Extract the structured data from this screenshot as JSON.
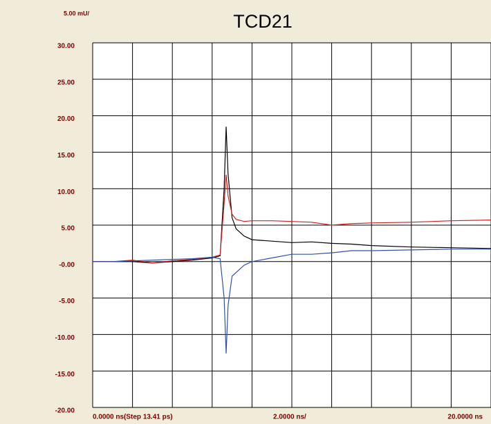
{
  "chart_data": {
    "type": "line",
    "title": "TCD21",
    "y_division_label": "5.00 mU/",
    "x_start_label": "0.0000 ns(Step 13.41 ps)",
    "x_division_label": "2.0000 ns/",
    "x_end_label": "20.0000 ns",
    "x": [
      0,
      1.0,
      2.0,
      3.0,
      4.0,
      5.0,
      6.0,
      6.4,
      6.6,
      6.7,
      6.8,
      7.0,
      7.2,
      7.6,
      8.0,
      9.0,
      10.0,
      11.0,
      12.0,
      13.0,
      14.0,
      16.0,
      18.0,
      20.0
    ],
    "series": [
      {
        "name": "black",
        "color": "#000000",
        "values": [
          0,
          0,
          0,
          -0.2,
          0,
          0.2,
          0.5,
          0.8,
          10,
          18.5,
          12,
          6,
          4.5,
          3.5,
          3,
          2.8,
          2.6,
          2.7,
          2.5,
          2.4,
          2.2,
          2,
          1.9,
          1.8
        ]
      },
      {
        "name": "red",
        "color": "#d02020",
        "values": [
          0,
          0,
          0.2,
          -0.2,
          0.1,
          0.3,
          0.6,
          0.9,
          8,
          11.9,
          9,
          6.5,
          5.8,
          5.5,
          5.6,
          5.6,
          5.5,
          5.4,
          5.0,
          5.2,
          5.3,
          5.4,
          5.6,
          5.7
        ]
      },
      {
        "name": "blue",
        "color": "#3050b0",
        "values": [
          0,
          0,
          0.1,
          0.2,
          0.3,
          0.4,
          0.6,
          0.4,
          -5,
          -12.6,
          -6,
          -2,
          -1.5,
          -0.5,
          0,
          0.5,
          1,
          1,
          1.2,
          1.5,
          1.5,
          1.6,
          1.7,
          1.7
        ]
      }
    ],
    "xlim": [
      0,
      20
    ],
    "xticks": [
      0,
      2,
      4,
      6,
      8,
      10,
      12,
      14,
      16,
      18,
      20
    ],
    "ylim": [
      -20,
      30
    ],
    "yticks": [
      {
        "value": 30,
        "label": "30.00"
      },
      {
        "value": 25,
        "label": "25.00"
      },
      {
        "value": 20,
        "label": "20.00"
      },
      {
        "value": 15,
        "label": "15.00"
      },
      {
        "value": 10,
        "label": "10.00"
      },
      {
        "value": 5,
        "label": "5.00"
      },
      {
        "value": 0,
        "label": "-0.00"
      },
      {
        "value": -5,
        "label": "-5.00"
      },
      {
        "value": -10,
        "label": "-10.00"
      },
      {
        "value": -15,
        "label": "-15.00"
      },
      {
        "value": -20,
        "label": "-20.00"
      }
    ],
    "grid": true
  }
}
